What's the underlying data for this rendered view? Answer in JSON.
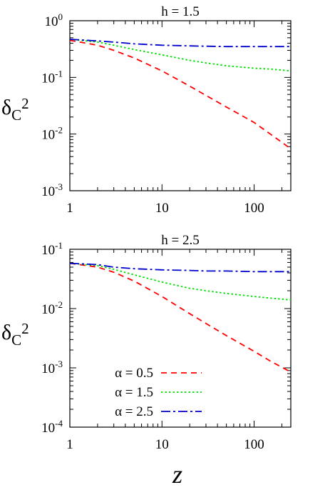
{
  "chart_data": [
    {
      "type": "line",
      "title": "h = 1.5",
      "ylabel": {
        "main": "δ",
        "sub": "C",
        "sup": "2"
      },
      "xlabel": "",
      "xscale": "log",
      "yscale": "log",
      "xlim": [
        1,
        250
      ],
      "ylim": [
        0.001,
        1
      ],
      "xticks": [
        {
          "value": 1,
          "label": "1"
        },
        {
          "value": 10,
          "label": "10"
        },
        {
          "value": 100,
          "label": "100"
        }
      ],
      "yticks": [
        {
          "value": 1,
          "base": "10",
          "exp": "0"
        },
        {
          "value": 0.1,
          "base": "10",
          "exp": "-1"
        },
        {
          "value": 0.01,
          "base": "10",
          "exp": "-2"
        },
        {
          "value": 0.001,
          "base": "10",
          "exp": "-3"
        }
      ],
      "legend": null,
      "series": [
        {
          "alpha": "0.5",
          "color": "#ff0000",
          "dash": "dashed",
          "x": [
            1,
            2,
            3,
            5,
            10,
            20,
            30,
            50,
            100,
            150,
            250
          ],
          "y": [
            0.45,
            0.37,
            0.3,
            0.22,
            0.13,
            0.07,
            0.048,
            0.03,
            0.016,
            0.01,
            0.0055
          ]
        },
        {
          "alpha": "1.5",
          "color": "#00dd00",
          "dash": "dotted",
          "x": [
            1,
            2,
            3,
            5,
            10,
            20,
            30,
            50,
            100,
            150,
            250
          ],
          "y": [
            0.47,
            0.42,
            0.37,
            0.31,
            0.25,
            0.2,
            0.18,
            0.16,
            0.145,
            0.14,
            0.13
          ]
        },
        {
          "alpha": "2.5",
          "color": "#0000cc",
          "dash": "dash-dot",
          "x": [
            1,
            2,
            3,
            5,
            10,
            20,
            30,
            50,
            100,
            150,
            250
          ],
          "y": [
            0.47,
            0.44,
            0.42,
            0.39,
            0.37,
            0.36,
            0.355,
            0.35,
            0.35,
            0.35,
            0.35
          ]
        }
      ]
    },
    {
      "type": "line",
      "title": "h = 2.5",
      "ylabel": {
        "main": "δ",
        "sub": "C",
        "sup": "2"
      },
      "xlabel": "z",
      "xscale": "log",
      "yscale": "log",
      "xlim": [
        1,
        250
      ],
      "ylim": [
        0.0001,
        0.1
      ],
      "xticks": [
        {
          "value": 1,
          "label": "1"
        },
        {
          "value": 10,
          "label": "10"
        },
        {
          "value": 100,
          "label": "100"
        }
      ],
      "yticks": [
        {
          "value": 0.1,
          "base": "10",
          "exp": "-1"
        },
        {
          "value": 0.01,
          "base": "10",
          "exp": "-2"
        },
        {
          "value": 0.001,
          "base": "10",
          "exp": "-3"
        },
        {
          "value": 0.0001,
          "base": "10",
          "exp": "-4"
        }
      ],
      "legend": "bottom-left",
      "series": [
        {
          "name": "α = 0.5",
          "alpha": "0.5",
          "color": "#ff0000",
          "dash": "dashed",
          "x": [
            1,
            2,
            3,
            5,
            10,
            20,
            30,
            50,
            100,
            150,
            250
          ],
          "y": [
            0.058,
            0.05,
            0.041,
            0.029,
            0.016,
            0.0082,
            0.0056,
            0.0035,
            0.0019,
            0.0013,
            0.00085
          ]
        },
        {
          "name": "α = 1.5",
          "alpha": "1.5",
          "color": "#00dd00",
          "dash": "dotted",
          "x": [
            1,
            2,
            3,
            5,
            10,
            20,
            30,
            50,
            100,
            150,
            250
          ],
          "y": [
            0.058,
            0.053,
            0.046,
            0.037,
            0.028,
            0.022,
            0.02,
            0.018,
            0.016,
            0.015,
            0.014
          ]
        },
        {
          "name": "α = 2.5",
          "alpha": "2.5",
          "color": "#0000cc",
          "dash": "dash-dot",
          "x": [
            1,
            2,
            3,
            5,
            10,
            20,
            30,
            50,
            100,
            150,
            250
          ],
          "y": [
            0.058,
            0.055,
            0.05,
            0.047,
            0.045,
            0.044,
            0.043,
            0.043,
            0.042,
            0.042,
            0.042
          ]
        }
      ]
    }
  ]
}
